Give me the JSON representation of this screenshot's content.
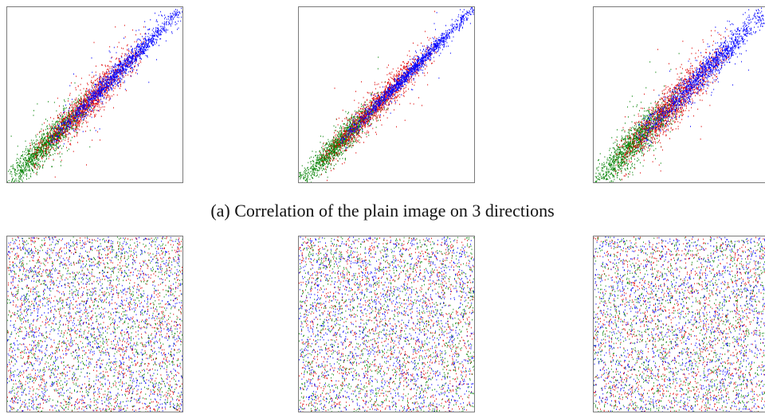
{
  "caption_a": "(a) Correlation of the plain image on 3 directions",
  "colors": {
    "red": "#e00000",
    "green": "#008000",
    "blue": "#0000ff",
    "frame": "#7a7a7a"
  },
  "chart_data": [
    {
      "type": "scatter",
      "group": "plain",
      "direction": "first",
      "series": [
        {
          "color": "green",
          "distribution": "diagonal",
          "x_range": [
            0,
            120
          ],
          "spread": 12
        },
        {
          "color": "red",
          "distribution": "diagonal",
          "x_range": [
            40,
            190
          ],
          "spread": 14
        },
        {
          "color": "blue",
          "distribution": "diagonal",
          "x_range": [
            70,
            255
          ],
          "spread": 8
        }
      ],
      "xlim": [
        0,
        255
      ],
      "ylim": [
        0,
        255
      ]
    },
    {
      "type": "scatter",
      "group": "plain",
      "direction": "second",
      "series": [
        {
          "color": "green",
          "distribution": "diagonal",
          "x_range": [
            0,
            120
          ],
          "spread": 10
        },
        {
          "color": "red",
          "distribution": "diagonal",
          "x_range": [
            40,
            190
          ],
          "spread": 12
        },
        {
          "color": "blue",
          "distribution": "diagonal",
          "x_range": [
            70,
            255
          ],
          "spread": 6
        }
      ],
      "xlim": [
        0,
        255
      ],
      "ylim": [
        0,
        255
      ]
    },
    {
      "type": "scatter",
      "group": "plain",
      "direction": "third",
      "series": [
        {
          "color": "green",
          "distribution": "diagonal",
          "x_range": [
            0,
            120
          ],
          "spread": 15
        },
        {
          "color": "red",
          "distribution": "diagonal",
          "x_range": [
            40,
            190
          ],
          "spread": 17
        },
        {
          "color": "blue",
          "distribution": "diagonal",
          "x_range": [
            70,
            255
          ],
          "spread": 11
        }
      ],
      "xlim": [
        0,
        255
      ],
      "ylim": [
        0,
        255
      ]
    },
    {
      "type": "scatter",
      "group": "cipher",
      "direction": "first",
      "series": [
        {
          "color": "red",
          "distribution": "uniform",
          "x_range": [
            0,
            255
          ]
        },
        {
          "color": "green",
          "distribution": "uniform",
          "x_range": [
            0,
            255
          ]
        },
        {
          "color": "blue",
          "distribution": "uniform",
          "x_range": [
            0,
            255
          ]
        }
      ],
      "xlim": [
        0,
        255
      ],
      "ylim": [
        0,
        255
      ]
    },
    {
      "type": "scatter",
      "group": "cipher",
      "direction": "second",
      "series": [
        {
          "color": "red",
          "distribution": "uniform",
          "x_range": [
            0,
            255
          ]
        },
        {
          "color": "green",
          "distribution": "uniform",
          "x_range": [
            0,
            255
          ]
        },
        {
          "color": "blue",
          "distribution": "uniform",
          "x_range": [
            0,
            255
          ]
        }
      ],
      "xlim": [
        0,
        255
      ],
      "ylim": [
        0,
        255
      ]
    },
    {
      "type": "scatter",
      "group": "cipher",
      "direction": "third",
      "series": [
        {
          "color": "red",
          "distribution": "uniform",
          "x_range": [
            0,
            255
          ]
        },
        {
          "color": "green",
          "distribution": "uniform",
          "x_range": [
            0,
            255
          ]
        },
        {
          "color": "blue",
          "distribution": "uniform",
          "x_range": [
            0,
            255
          ]
        }
      ],
      "xlim": [
        0,
        255
      ],
      "ylim": [
        0,
        255
      ]
    }
  ]
}
